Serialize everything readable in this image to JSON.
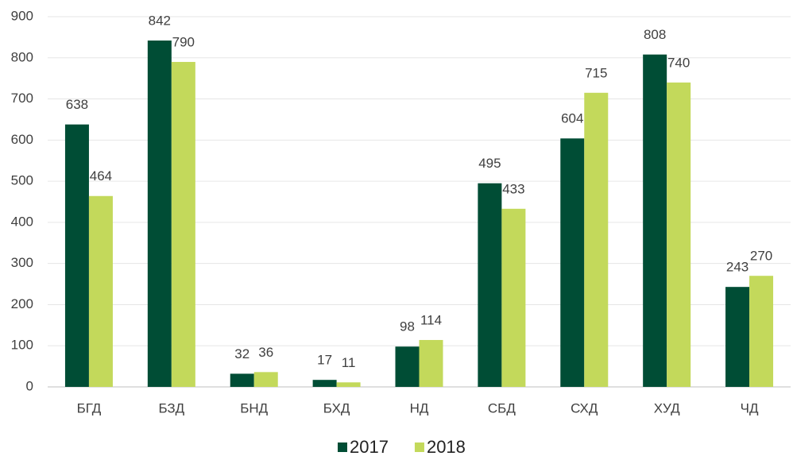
{
  "chart_data": {
    "type": "bar",
    "categories": [
      "БГД",
      "БЗД",
      "БНД",
      "БХД",
      "НД",
      "СБД",
      "СХД",
      "ХУД",
      "ЧД"
    ],
    "series": [
      {
        "name": "2017",
        "color": "#004d35",
        "values": [
          638,
          842,
          32,
          17,
          98,
          495,
          604,
          808,
          243
        ]
      },
      {
        "name": "2018",
        "color": "#c3d95b",
        "values": [
          464,
          790,
          36,
          11,
          114,
          433,
          715,
          740,
          270
        ]
      }
    ],
    "ylim": [
      0,
      900
    ],
    "yticks": [
      0,
      100,
      200,
      300,
      400,
      500,
      600,
      700,
      800,
      900
    ],
    "grid": true,
    "legend": "bottom"
  }
}
